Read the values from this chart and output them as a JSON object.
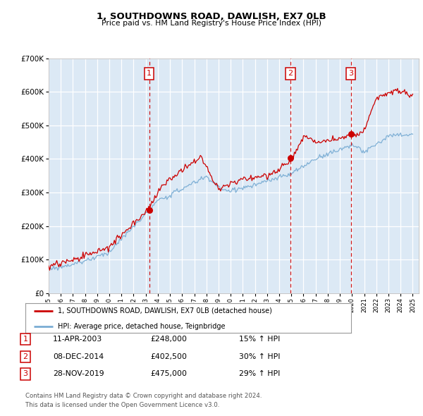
{
  "title": "1, SOUTHDOWNS ROAD, DAWLISH, EX7 0LB",
  "subtitle": "Price paid vs. HM Land Registry's House Price Index (HPI)",
  "legend_line1": "1, SOUTHDOWNS ROAD, DAWLISH, EX7 0LB (detached house)",
  "legend_line2": "HPI: Average price, detached house, Teignbridge",
  "transactions": [
    {
      "num": 1,
      "date": "11-APR-2003",
      "price": 248000,
      "hpi_pct": "15% ↑ HPI",
      "year": 2003.28
    },
    {
      "num": 2,
      "date": "08-DEC-2014",
      "price": 402500,
      "hpi_pct": "30% ↑ HPI",
      "year": 2014.93
    },
    {
      "num": 3,
      "date": "28-NOV-2019",
      "price": 475000,
      "hpi_pct": "29% ↑ HPI",
      "year": 2019.9
    }
  ],
  "footer_line1": "Contains HM Land Registry data © Crown copyright and database right 2024.",
  "footer_line2": "This data is licensed under the Open Government Licence v3.0.",
  "red_color": "#cc0000",
  "blue_color": "#7aadd4",
  "vline_color": "#cc0000",
  "plot_bg_color": "#dce9f5",
  "ylim": [
    0,
    700000
  ],
  "xmin": 1995.0,
  "xmax": 2025.5
}
